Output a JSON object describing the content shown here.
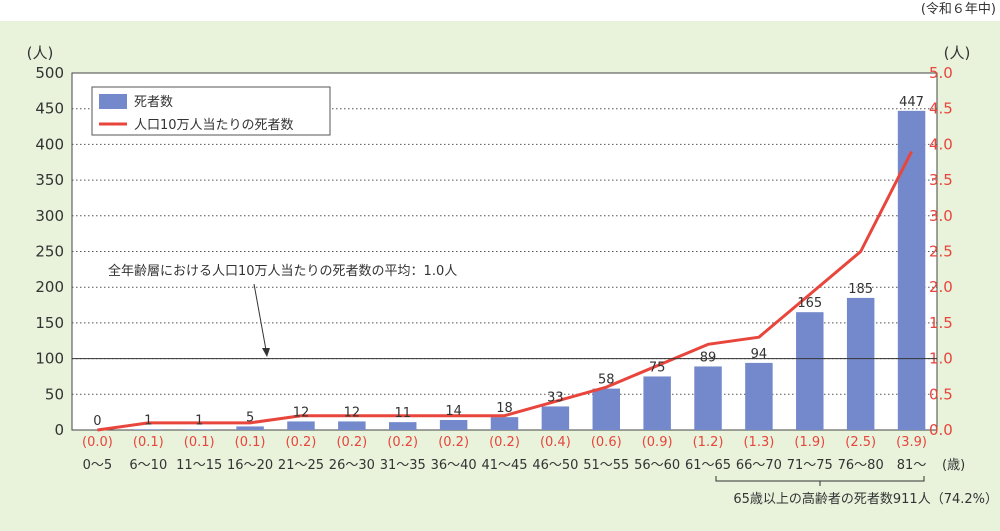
{
  "chart_data": {
    "type": "bar",
    "period_note": "(令和６年中)",
    "categories": [
      "0～5",
      "6～10",
      "11～15",
      "16～20",
      "21～25",
      "26～30",
      "31～35",
      "36～40",
      "41～45",
      "46～50",
      "51～55",
      "56～60",
      "61～65",
      "66～70",
      "71～75",
      "76～80",
      "81～"
    ],
    "x_unit": "(歳)",
    "series": [
      {
        "name": "死者数",
        "values": [
          0,
          1,
          1,
          5,
          12,
          12,
          11,
          14,
          18,
          33,
          58,
          75,
          89,
          94,
          165,
          185,
          447
        ],
        "color": "#7489cc",
        "axis": "left"
      },
      {
        "name": "人口10万人当たりの死者数",
        "values": [
          0.0,
          0.1,
          0.1,
          0.1,
          0.2,
          0.2,
          0.2,
          0.2,
          0.2,
          0.4,
          0.6,
          0.9,
          1.2,
          1.3,
          1.9,
          2.5,
          3.9
        ],
        "color": "#e8453c",
        "axis": "right"
      }
    ],
    "rate_labels": [
      "(0.0)",
      "(0.1)",
      "(0.1)",
      "(0.1)",
      "(0.2)",
      "(0.2)",
      "(0.2)",
      "(0.2)",
      "(0.2)",
      "(0.4)",
      "(0.6)",
      "(0.9)",
      "(1.2)",
      "(1.3)",
      "(1.9)",
      "(2.5)",
      "(3.9)"
    ],
    "y_left": {
      "unit": "(人)",
      "min": 0,
      "max": 500,
      "ticks": [
        "0",
        "50",
        "100",
        "150",
        "200",
        "250",
        "300",
        "350",
        "400",
        "450",
        "500"
      ]
    },
    "y_right": {
      "unit": "(人)",
      "min": 0,
      "max": 5.0,
      "ticks": [
        "0.0",
        "0.5",
        "1.0",
        "1.5",
        "2.0",
        "2.5",
        "3.0",
        "3.5",
        "4.0",
        "4.5",
        "5.0"
      ]
    },
    "average_line": {
      "value_left_axis": 100,
      "label": "全年齢層における人口10万人当たりの死者数の平均：1.0人"
    },
    "elderly_note": "65歳以上の高齢者の死者数911人（74.2%）",
    "grid": "horizontal-dotted",
    "legend_position": "top-left",
    "colors": {
      "background": "#e9f3dc",
      "plot": "#ffffff",
      "bar": "#7489cc",
      "line": "#e8453c"
    }
  }
}
